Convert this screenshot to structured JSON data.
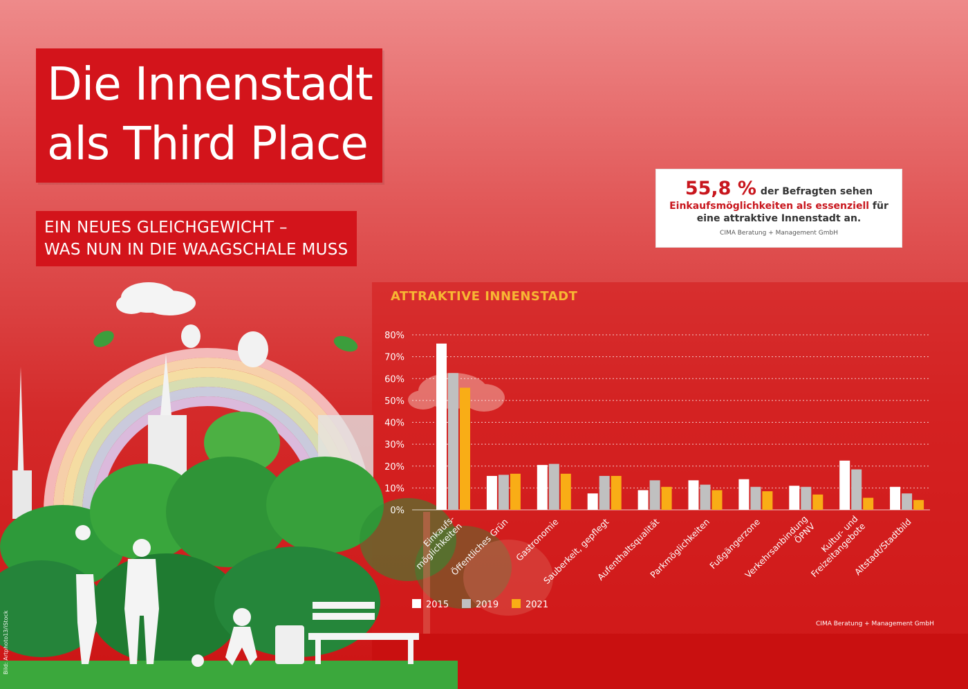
{
  "header": {
    "title_line1": "Die Innenstadt",
    "title_line2": "als Third Place",
    "subtitle_line1": "EIN NEUES GLEICHGEWICHT –",
    "subtitle_line2": "WAS NUN IN DIE WAAGSCHALE MUSS"
  },
  "stat": {
    "value": "55,8 %",
    "text1": "der Befragten sehen",
    "highlight": "Einkaufsmöglichkeiten als essenziell",
    "text2": "für",
    "text3": "eine attraktive Innenstadt an.",
    "source": "CIMA Beratung + Management GmbH"
  },
  "credit": "Bild: Artphoto13/iStock",
  "chart_source": "CIMA Beratung + Management GmbH",
  "chart_data": {
    "type": "bar",
    "title": "ATTRAKTIVE INNENSTADT",
    "xlabel": "",
    "ylabel": "",
    "ylim": [
      0,
      80
    ],
    "yticks": [
      "0%",
      "10%",
      "20%",
      "30%",
      "40%",
      "50%",
      "60%",
      "70%",
      "80%"
    ],
    "grid": true,
    "legend": "bottom-left",
    "categories": [
      [
        "Einkaufs-",
        "möglichkeiten"
      ],
      [
        "Öffentliches Grün"
      ],
      [
        "Gastronomie"
      ],
      [
        "Sauberkeit, gepflegt"
      ],
      [
        "Aufenthaltsqualität"
      ],
      [
        "Parkmöglichkeiten"
      ],
      [
        "Fußgängerzone"
      ],
      [
        "Verkehrsanbindung",
        "ÖPNV"
      ],
      [
        "Kultur- und",
        "Freizeitangebote"
      ],
      [
        "Altstadt/Stadtbild"
      ]
    ],
    "series": [
      {
        "name": "2015",
        "color": "#ffffff",
        "values": [
          76,
          15.5,
          20.5,
          7.5,
          9,
          13.5,
          14,
          11,
          22.5,
          10.5
        ]
      },
      {
        "name": "2019",
        "color": "#c0c0c0",
        "values": [
          62.5,
          16,
          21,
          15.5,
          13.5,
          11.5,
          10.5,
          10.5,
          18.5,
          7.5
        ]
      },
      {
        "name": "2021",
        "color": "#f9ad16",
        "values": [
          55.8,
          16.5,
          16.5,
          15.5,
          10.5,
          9,
          8.5,
          7,
          5.5,
          4.5
        ]
      }
    ]
  }
}
